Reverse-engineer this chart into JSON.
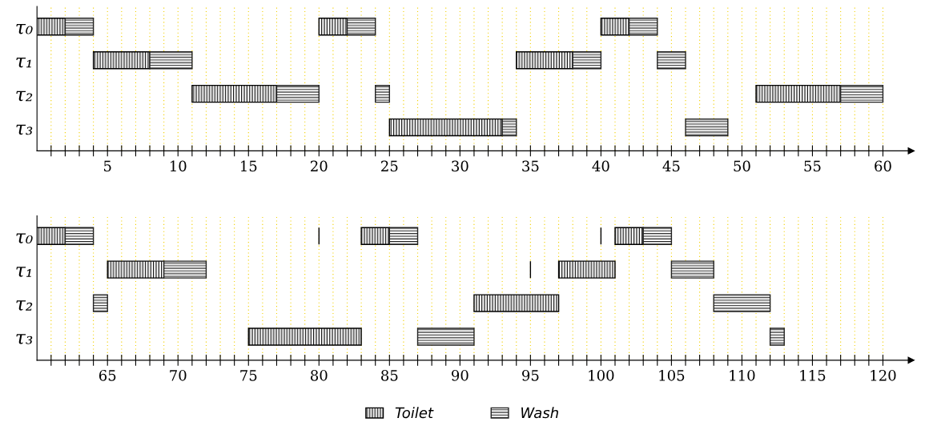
{
  "chart_data": [
    {
      "type": "bar",
      "orientation": "horizontal",
      "categories": [
        "τ₀",
        "τ₁",
        "τ₂",
        "τ₃"
      ],
      "xlim": [
        0,
        62
      ],
      "xticks": [
        {
          "value": 1,
          "label": null
        },
        {
          "value": 2,
          "label": null
        },
        {
          "value": 3,
          "label": null
        },
        {
          "value": 4,
          "label": null
        },
        5,
        {
          "value": 6,
          "label": null
        },
        {
          "value": 7,
          "label": null
        },
        {
          "value": 8,
          "label": null
        },
        {
          "value": 9,
          "label": null
        },
        10,
        {
          "value": 11,
          "label": null
        },
        {
          "value": 12,
          "label": null
        },
        {
          "value": 13,
          "label": null
        },
        {
          "value": 14,
          "label": null
        },
        15,
        {
          "value": 16,
          "label": null
        },
        {
          "value": 17,
          "label": null
        },
        {
          "value": 18,
          "label": null
        },
        {
          "value": 19,
          "label": null
        },
        20,
        {
          "value": 21,
          "label": null
        },
        {
          "value": 22,
          "label": null
        },
        {
          "value": 23,
          "label": null
        },
        {
          "value": 24,
          "label": null
        },
        25,
        {
          "value": 26,
          "label": null
        },
        {
          "value": 27,
          "label": null
        },
        {
          "value": 28,
          "label": null
        },
        {
          "value": 29,
          "label": null
        },
        30,
        {
          "value": 31,
          "label": null
        },
        {
          "value": 32,
          "label": null
        },
        {
          "value": 33,
          "label": null
        },
        {
          "value": 34,
          "label": null
        },
        35,
        {
          "value": 36,
          "label": null
        },
        {
          "value": 37,
          "label": null
        },
        {
          "value": 38,
          "label": null
        },
        {
          "value": 39,
          "label": null
        },
        40,
        {
          "value": 41,
          "label": null
        },
        {
          "value": 42,
          "label": null
        },
        {
          "value": 43,
          "label": null
        },
        {
          "value": 44,
          "label": null
        },
        45,
        {
          "value": 46,
          "label": null
        },
        {
          "value": 47,
          "label": null
        },
        {
          "value": 48,
          "label": null
        },
        {
          "value": 49,
          "label": null
        },
        50,
        {
          "value": 51,
          "label": null
        },
        {
          "value": 52,
          "label": null
        },
        {
          "value": 53,
          "label": null
        },
        {
          "value": 54,
          "label": null
        },
        55,
        {
          "value": 56,
          "label": null
        },
        {
          "value": 57,
          "label": null
        },
        {
          "value": 58,
          "label": null
        },
        {
          "value": 59,
          "label": null
        },
        60
      ],
      "grid": "x",
      "series": [
        {
          "color": "#000000",
          "base": [
            0,
            4,
            11,
            25
          ],
          "values": [
            2,
            4,
            6,
            8
          ]
        },
        {
          "color": "#000000",
          "base": [
            20,
            34,
            51,
            null
          ],
          "values": [
            2,
            4,
            6,
            null
          ]
        },
        {
          "color": "#000000",
          "base": [
            40,
            null,
            null,
            null
          ],
          "values": [
            2,
            null,
            null,
            null
          ]
        },
        {
          "color": "#222222",
          "base": [
            2,
            8,
            17,
            33
          ],
          "values": [
            2,
            3,
            3,
            1
          ]
        },
        {
          "color": "#222222",
          "base": [
            22,
            38,
            24,
            46
          ],
          "values": [
            2,
            2,
            1,
            3
          ]
        },
        {
          "color": "#222222",
          "base": [
            42,
            44,
            57,
            null
          ],
          "values": [
            2,
            2,
            3,
            null
          ]
        }
      ]
    },
    {
      "type": "bar",
      "orientation": "horizontal",
      "categories": [
        "τ₀",
        "τ₁",
        "τ₂",
        "τ₃"
      ],
      "xlim": [
        60,
        122
      ],
      "xticks": [
        {
          "value": 61,
          "label": null
        },
        {
          "value": 62,
          "label": null
        },
        {
          "value": 63,
          "label": null
        },
        {
          "value": 64,
          "label": null
        },
        65,
        {
          "value": 66,
          "label": null
        },
        {
          "value": 67,
          "label": null
        },
        {
          "value": 68,
          "label": null
        },
        {
          "value": 69,
          "label": null
        },
        70,
        {
          "value": 71,
          "label": null
        },
        {
          "value": 72,
          "label": null
        },
        {
          "value": 73,
          "label": null
        },
        {
          "value": 74,
          "label": null
        },
        75,
        {
          "value": 76,
          "label": null
        },
        {
          "value": 77,
          "label": null
        },
        {
          "value": 78,
          "label": null
        },
        {
          "value": 79,
          "label": null
        },
        80,
        {
          "value": 81,
          "label": null
        },
        {
          "value": 82,
          "label": null
        },
        {
          "value": 83,
          "label": null
        },
        {
          "value": 84,
          "label": null
        },
        85,
        {
          "value": 86,
          "label": null
        },
        {
          "value": 87,
          "label": null
        },
        {
          "value": 88,
          "label": null
        },
        {
          "value": 89,
          "label": null
        },
        90,
        {
          "value": 91,
          "label": null
        },
        {
          "value": 92,
          "label": null
        },
        {
          "value": 93,
          "label": null
        },
        {
          "value": 94,
          "label": null
        },
        95,
        {
          "value": 96,
          "label": null
        },
        {
          "value": 97,
          "label": null
        },
        {
          "value": 98,
          "label": null
        },
        {
          "value": 99,
          "label": null
        },
        100,
        {
          "value": 101,
          "label": null
        },
        {
          "value": 102,
          "label": null
        },
        {
          "value": 103,
          "label": null
        },
        {
          "value": 104,
          "label": null
        },
        105,
        {
          "value": 106,
          "label": null
        },
        {
          "value": 107,
          "label": null
        },
        {
          "value": 108,
          "label": null
        },
        {
          "value": 109,
          "label": null
        },
        110,
        {
          "value": 111,
          "label": null
        },
        {
          "value": 112,
          "label": null
        },
        {
          "value": 113,
          "label": null
        },
        {
          "value": 114,
          "label": null
        },
        115,
        {
          "value": 116,
          "label": null
        },
        {
          "value": 117,
          "label": null
        },
        {
          "value": 118,
          "label": null
        },
        {
          "value": 119,
          "label": null
        },
        120
      ],
      "grid": "x",
      "legend": "bottom",
      "series": [
        {
          "name": "Toilet",
          "color": "#000000",
          "base": [
            60,
            65,
            91,
            75
          ],
          "values": [
            2,
            4,
            6,
            8
          ]
        },
        {
          "color": "#000000",
          "base": [
            83,
            97,
            null,
            null
          ],
          "values": [
            2,
            4,
            null,
            null
          ]
        },
        {
          "color": "#000000",
          "base": [
            101,
            null,
            null,
            null
          ],
          "values": [
            2,
            null,
            null,
            null
          ]
        },
        {
          "name": "Wash",
          "color": "#222222",
          "base": [
            62,
            69,
            64,
            87
          ],
          "values": [
            2,
            3,
            1,
            4
          ]
        },
        {
          "color": "#222222",
          "base": [
            85,
            105,
            108,
            112
          ],
          "values": [
            2,
            3,
            4,
            1
          ]
        },
        {
          "color": "#222222",
          "base": [
            103,
            null,
            null,
            null
          ],
          "values": [
            2,
            null,
            null,
            null
          ]
        },
        {
          "color": "#000000",
          "base": [
            80,
            95,
            null,
            null
          ],
          "values": [
            0,
            0,
            null,
            null
          ]
        },
        {
          "color": "#000000",
          "base": [
            100,
            null,
            null,
            null
          ],
          "values": [
            0,
            null,
            null,
            null
          ]
        }
      ]
    }
  ]
}
